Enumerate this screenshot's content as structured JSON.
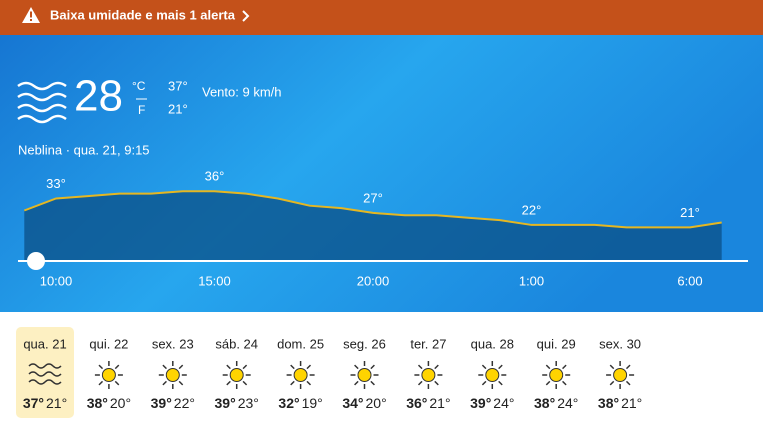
{
  "alert": {
    "text": "Baixa umidade e mais 1 alerta"
  },
  "current": {
    "temperature": "28",
    "unit_c": "°C",
    "unit_f": "F",
    "high": "37°",
    "low": "21°",
    "wind": "Vento: 9 km/h",
    "condition": "Neblina · qua. 21, 9:15"
  },
  "hourly": {
    "ylim": [
      7,
      49
    ],
    "values": [
      28,
      33,
      34,
      35,
      35,
      36,
      36,
      35,
      33,
      30,
      29,
      27,
      26,
      26,
      25,
      24,
      22,
      22,
      22,
      21,
      21,
      21,
      23
    ],
    "value_labels": [
      null,
      "33°",
      null,
      null,
      null,
      null,
      "36°",
      null,
      null,
      null,
      null,
      "27°",
      null,
      null,
      null,
      null,
      "22°",
      null,
      null,
      null,
      null,
      "21°",
      null
    ],
    "times": [
      null,
      "10:00",
      null,
      null,
      null,
      null,
      "15:00",
      null,
      null,
      null,
      null,
      "20:00",
      null,
      null,
      null,
      null,
      "1:00",
      null,
      null,
      null,
      null,
      "6:00",
      null
    ]
  },
  "days": [
    {
      "name": "qua. 21",
      "icon": "fog",
      "high": "37°",
      "low": "21°",
      "selected": true
    },
    {
      "name": "qui. 22",
      "icon": "sunny",
      "high": "38°",
      "low": "20°"
    },
    {
      "name": "sex. 23",
      "icon": "sunny",
      "high": "39°",
      "low": "22°"
    },
    {
      "name": "sáb. 24",
      "icon": "sunny",
      "high": "39°",
      "low": "23°"
    },
    {
      "name": "dom. 25",
      "icon": "sunny",
      "high": "32°",
      "low": "19°"
    },
    {
      "name": "seg. 26",
      "icon": "sunny",
      "high": "34°",
      "low": "20°"
    },
    {
      "name": "ter. 27",
      "icon": "sunny",
      "high": "36°",
      "low": "21°"
    },
    {
      "name": "qua. 28",
      "icon": "sunny",
      "high": "39°",
      "low": "24°"
    },
    {
      "name": "qui. 29",
      "icon": "sunny",
      "high": "38°",
      "low": "24°"
    },
    {
      "name": "sex. 30",
      "icon": "sunny",
      "high": "38°",
      "low": "21°"
    }
  ]
}
